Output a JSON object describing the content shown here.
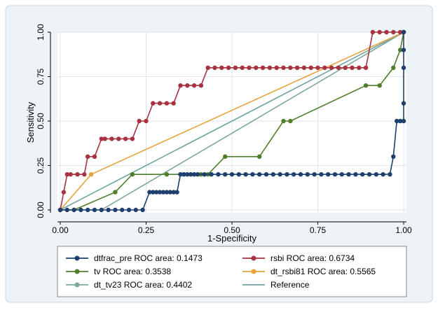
{
  "chart_data": {
    "type": "line",
    "xlabel": "1-Specificity",
    "ylabel": "Sensitivity",
    "xlim": [
      0,
      1
    ],
    "ylim": [
      0,
      1
    ],
    "xticks": [
      "0.00",
      "0.25",
      "0.50",
      "0.75",
      "1.00"
    ],
    "yticks": [
      "0.00",
      "0.25",
      "0.50",
      "0.75",
      "1.00"
    ],
    "grid": true,
    "legend_position": "bottom",
    "series": [
      {
        "name": "dtfrac_pre ROC area: 0.1473",
        "color": "#1f3f6e",
        "x": [
          0,
          0.02,
          0.04,
          0.06,
          0.08,
          0.1,
          0.12,
          0.14,
          0.16,
          0.18,
          0.2,
          0.22,
          0.24,
          0.26,
          0.27,
          0.28,
          0.29,
          0.3,
          0.31,
          0.32,
          0.33,
          0.34,
          0.35,
          0.36,
          0.37,
          0.38,
          0.39,
          0.4,
          0.42,
          0.44,
          0.46,
          0.48,
          0.5,
          0.52,
          0.54,
          0.56,
          0.58,
          0.6,
          0.62,
          0.64,
          0.66,
          0.68,
          0.7,
          0.72,
          0.74,
          0.76,
          0.78,
          0.8,
          0.82,
          0.84,
          0.86,
          0.88,
          0.9,
          0.92,
          0.94,
          0.96,
          0.97,
          0.98,
          0.99,
          1.0,
          1.0,
          1.0,
          1.0,
          1.0
        ],
        "y": [
          0,
          0,
          0,
          0,
          0,
          0,
          0,
          0,
          0,
          0,
          0,
          0,
          0,
          0.1,
          0.1,
          0.1,
          0.1,
          0.1,
          0.1,
          0.1,
          0.1,
          0.1,
          0.2,
          0.2,
          0.2,
          0.2,
          0.2,
          0.2,
          0.2,
          0.2,
          0.2,
          0.2,
          0.2,
          0.2,
          0.2,
          0.2,
          0.2,
          0.2,
          0.2,
          0.2,
          0.2,
          0.2,
          0.2,
          0.2,
          0.2,
          0.2,
          0.2,
          0.2,
          0.2,
          0.2,
          0.2,
          0.2,
          0.2,
          0.2,
          0.2,
          0.2,
          0.3,
          0.5,
          0.5,
          0.5,
          0.6,
          0.8,
          0.9,
          1.0
        ]
      },
      {
        "name": "rsbi ROC area: 0.6734",
        "color": "#a83240",
        "x": [
          0,
          0.01,
          0.02,
          0.03,
          0.05,
          0.07,
          0.08,
          0.1,
          0.12,
          0.13,
          0.15,
          0.17,
          0.19,
          0.21,
          0.23,
          0.25,
          0.27,
          0.29,
          0.31,
          0.33,
          0.35,
          0.37,
          0.39,
          0.41,
          0.43,
          0.45,
          0.47,
          0.49,
          0.51,
          0.53,
          0.55,
          0.57,
          0.59,
          0.61,
          0.63,
          0.65,
          0.67,
          0.69,
          0.71,
          0.73,
          0.75,
          0.77,
          0.79,
          0.81,
          0.83,
          0.85,
          0.87,
          0.89,
          0.91,
          0.93,
          0.95,
          0.97,
          0.99,
          1.0
        ],
        "y": [
          0,
          0.1,
          0.2,
          0.2,
          0.2,
          0.2,
          0.3,
          0.3,
          0.4,
          0.4,
          0.4,
          0.4,
          0.4,
          0.4,
          0.5,
          0.5,
          0.6,
          0.6,
          0.6,
          0.6,
          0.7,
          0.7,
          0.7,
          0.7,
          0.8,
          0.8,
          0.8,
          0.8,
          0.8,
          0.8,
          0.8,
          0.8,
          0.8,
          0.8,
          0.8,
          0.8,
          0.8,
          0.8,
          0.8,
          0.8,
          0.8,
          0.8,
          0.8,
          0.8,
          0.8,
          0.8,
          0.8,
          0.8,
          1.0,
          1.0,
          1.0,
          1.0,
          1.0,
          1.0
        ]
      },
      {
        "name": "tv ROC area: 0.3538",
        "color": "#4f7f2a",
        "x": [
          0,
          0.04,
          0.16,
          0.21,
          0.31,
          0.41,
          0.43,
          0.48,
          0.58,
          0.65,
          0.67,
          0.89,
          0.93,
          0.97,
          0.99,
          1.0
        ],
        "y": [
          0,
          0,
          0.1,
          0.2,
          0.2,
          0.2,
          0.2,
          0.3,
          0.3,
          0.5,
          0.5,
          0.7,
          0.7,
          0.8,
          0.9,
          1.0
        ]
      },
      {
        "name": "dt_rsbi81 ROC area: 0.5565",
        "color": "#e8a33d",
        "x": [
          0,
          0.09,
          1.0
        ],
        "y": [
          0,
          0.2,
          1.0
        ]
      },
      {
        "name": "dt_tv23 ROC area: 0.4402",
        "color": "#7fa89a",
        "x": [
          0,
          0.12,
          1.0
        ],
        "y": [
          0,
          0,
          1.0
        ]
      },
      {
        "name": "Reference",
        "color": "#6fa3a0",
        "x": [
          0,
          1
        ],
        "y": [
          0,
          1
        ],
        "markers": false
      }
    ]
  },
  "colors": {
    "outer_background": "#eef3f8",
    "plot_background": "#ffffff",
    "grid": "#dde6ee",
    "axis": "#000000"
  }
}
